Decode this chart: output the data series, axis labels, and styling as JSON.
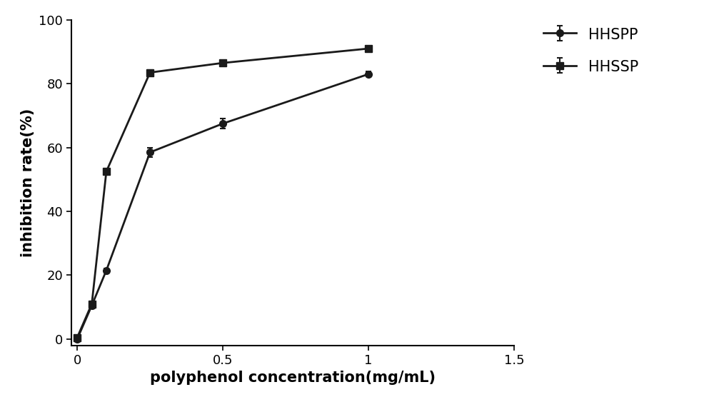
{
  "title": "",
  "xlabel": "polyphenol concentration(mg/mL)",
  "ylabel": "inhibition rate(%)",
  "xlim": [
    -0.02,
    1.5
  ],
  "ylim": [
    -2,
    100
  ],
  "xticks": [
    0.0,
    0.5,
    1.0,
    1.5
  ],
  "yticks": [
    0,
    20,
    40,
    60,
    80,
    100
  ],
  "series": [
    {
      "label": "HHSPP",
      "x": [
        0.0,
        0.05,
        0.1,
        0.25,
        0.5,
        1.0
      ],
      "y": [
        0.0,
        10.5,
        21.5,
        58.5,
        67.5,
        83.0
      ],
      "yerr": [
        0.0,
        0.3,
        0.5,
        1.5,
        1.5,
        0.8
      ],
      "marker": "o",
      "color": "#1a1a1a",
      "linewidth": 2.0,
      "markersize": 7
    },
    {
      "label": "HHSSP",
      "x": [
        0.0,
        0.05,
        0.1,
        0.25,
        0.5,
        1.0
      ],
      "y": [
        0.5,
        11.0,
        52.5,
        83.5,
        86.5,
        91.0
      ],
      "yerr": [
        0.2,
        0.3,
        0.5,
        0.8,
        0.8,
        0.6
      ],
      "marker": "s",
      "color": "#1a1a1a",
      "linewidth": 2.0,
      "markersize": 7
    }
  ],
  "background_color": "#ffffff",
  "font_color": "#000000",
  "axis_linewidth": 1.5,
  "label_fontsize": 15,
  "tick_fontsize": 13,
  "legend_fontsize": 15
}
